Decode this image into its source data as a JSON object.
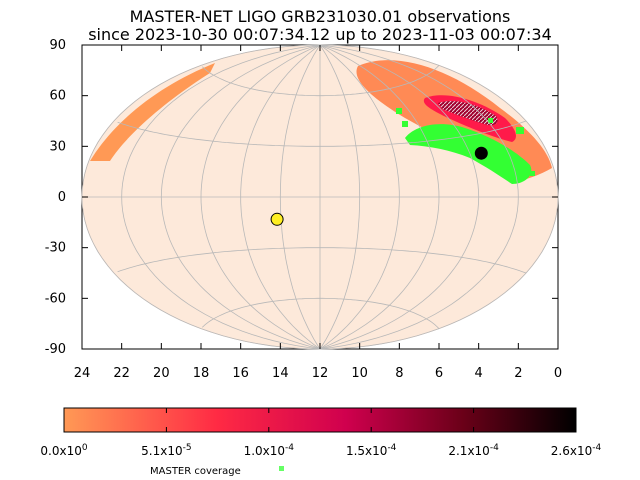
{
  "chart_data": {
    "type": "scatter",
    "projection": "aitoff",
    "title": "MASTER-NET LIGO GRB231030.01 observations",
    "subtitle": "since 2023-10-30 00:07:34.12 up to 2023-11-03 00:07:34",
    "xlabel": "",
    "ylabel": "",
    "x_ticks": [
      "24",
      "22",
      "20",
      "18",
      "16",
      "14",
      "12",
      "10",
      "8",
      "6",
      "4",
      "2",
      "0"
    ],
    "y_ticks": [
      "90",
      "60",
      "30",
      "0",
      "-30",
      "-60",
      "-90"
    ],
    "xlim": [
      24,
      0
    ],
    "ylim": [
      -90,
      90
    ],
    "grid": true,
    "colorbar": {
      "ticks": [
        "0.0x10^0",
        "5.1x10^-5",
        "1.0x10^-4",
        "1.5x10^-4",
        "2.1x10^-4",
        "2.6x10^-4"
      ],
      "range": [
        0,
        0.00026
      ],
      "colors": [
        "#ff9955",
        "#ff1a4a",
        "#cc0055",
        "#800020",
        "#000000"
      ]
    },
    "legend": {
      "label": "MASTER coverage",
      "color": "#66ff66"
    },
    "points": [
      {
        "ra_h": 14.2,
        "dec": -13,
        "color": "#ffee22"
      },
      {
        "ra_h": 3.4,
        "dec": 21,
        "color": "#000000"
      }
    ]
  }
}
